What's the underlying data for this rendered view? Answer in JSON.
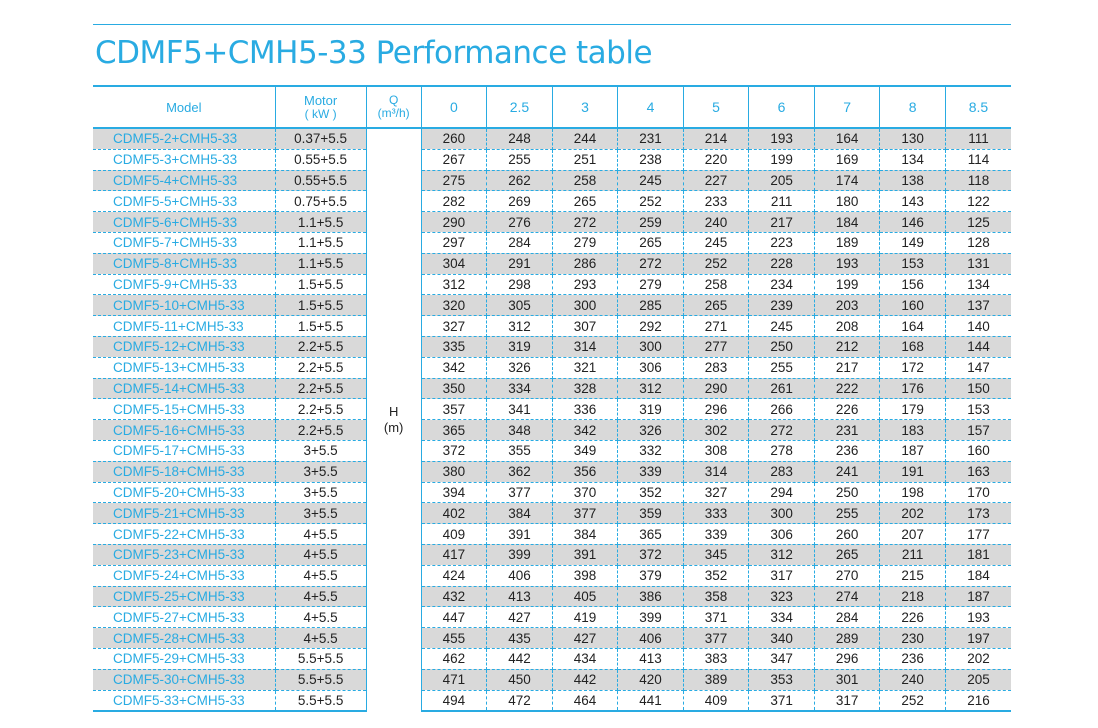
{
  "title": "CDMF5+CMH5-33 Performance table",
  "header": {
    "model": "Model",
    "motor_label": "Motor",
    "motor_unit": "( kW )",
    "q_label": "Q",
    "q_unit": "(m³/h)",
    "flows": [
      "0",
      "2.5",
      "3",
      "4",
      "5",
      "6",
      "7",
      "8",
      "8.5"
    ]
  },
  "h_label": "H",
  "h_unit": "(m)",
  "rows": [
    {
      "model": "CDMF5-2+CMH5-33",
      "motor": "0.37+5.5",
      "h": [
        "260",
        "248",
        "244",
        "231",
        "214",
        "193",
        "164",
        "130",
        "111"
      ]
    },
    {
      "model": "CDMF5-3+CMH5-33",
      "motor": "0.55+5.5",
      "h": [
        "267",
        "255",
        "251",
        "238",
        "220",
        "199",
        "169",
        "134",
        "114"
      ]
    },
    {
      "model": "CDMF5-4+CMH5-33",
      "motor": "0.55+5.5",
      "h": [
        "275",
        "262",
        "258",
        "245",
        "227",
        "205",
        "174",
        "138",
        "118"
      ]
    },
    {
      "model": "CDMF5-5+CMH5-33",
      "motor": "0.75+5.5",
      "h": [
        "282",
        "269",
        "265",
        "252",
        "233",
        "211",
        "180",
        "143",
        "122"
      ]
    },
    {
      "model": "CDMF5-6+CMH5-33",
      "motor": "1.1+5.5",
      "h": [
        "290",
        "276",
        "272",
        "259",
        "240",
        "217",
        "184",
        "146",
        "125"
      ]
    },
    {
      "model": "CDMF5-7+CMH5-33",
      "motor": "1.1+5.5",
      "h": [
        "297",
        "284",
        "279",
        "265",
        "245",
        "223",
        "189",
        "149",
        "128"
      ]
    },
    {
      "model": "CDMF5-8+CMH5-33",
      "motor": "1.1+5.5",
      "h": [
        "304",
        "291",
        "286",
        "272",
        "252",
        "228",
        "193",
        "153",
        "131"
      ]
    },
    {
      "model": "CDMF5-9+CMH5-33",
      "motor": "1.5+5.5",
      "h": [
        "312",
        "298",
        "293",
        "279",
        "258",
        "234",
        "199",
        "156",
        "134"
      ]
    },
    {
      "model": "CDMF5-10+CMH5-33",
      "motor": "1.5+5.5",
      "h": [
        "320",
        "305",
        "300",
        "285",
        "265",
        "239",
        "203",
        "160",
        "137"
      ]
    },
    {
      "model": "CDMF5-11+CMH5-33",
      "motor": "1.5+5.5",
      "h": [
        "327",
        "312",
        "307",
        "292",
        "271",
        "245",
        "208",
        "164",
        "140"
      ]
    },
    {
      "model": "CDMF5-12+CMH5-33",
      "motor": "2.2+5.5",
      "h": [
        "335",
        "319",
        "314",
        "300",
        "277",
        "250",
        "212",
        "168",
        "144"
      ]
    },
    {
      "model": "CDMF5-13+CMH5-33",
      "motor": "2.2+5.5",
      "h": [
        "342",
        "326",
        "321",
        "306",
        "283",
        "255",
        "217",
        "172",
        "147"
      ]
    },
    {
      "model": "CDMF5-14+CMH5-33",
      "motor": "2.2+5.5",
      "h": [
        "350",
        "334",
        "328",
        "312",
        "290",
        "261",
        "222",
        "176",
        "150"
      ]
    },
    {
      "model": "CDMF5-15+CMH5-33",
      "motor": "2.2+5.5",
      "h": [
        "357",
        "341",
        "336",
        "319",
        "296",
        "266",
        "226",
        "179",
        "153"
      ]
    },
    {
      "model": "CDMF5-16+CMH5-33",
      "motor": "2.2+5.5",
      "h": [
        "365",
        "348",
        "342",
        "326",
        "302",
        "272",
        "231",
        "183",
        "157"
      ]
    },
    {
      "model": "CDMF5-17+CMH5-33",
      "motor": "3+5.5",
      "h": [
        "372",
        "355",
        "349",
        "332",
        "308",
        "278",
        "236",
        "187",
        "160"
      ]
    },
    {
      "model": "CDMF5-18+CMH5-33",
      "motor": "3+5.5",
      "h": [
        "380",
        "362",
        "356",
        "339",
        "314",
        "283",
        "241",
        "191",
        "163"
      ]
    },
    {
      "model": "CDMF5-20+CMH5-33",
      "motor": "3+5.5",
      "h": [
        "394",
        "377",
        "370",
        "352",
        "327",
        "294",
        "250",
        "198",
        "170"
      ]
    },
    {
      "model": "CDMF5-21+CMH5-33",
      "motor": "3+5.5",
      "h": [
        "402",
        "384",
        "377",
        "359",
        "333",
        "300",
        "255",
        "202",
        "173"
      ]
    },
    {
      "model": "CDMF5-22+CMH5-33",
      "motor": "4+5.5",
      "h": [
        "409",
        "391",
        "384",
        "365",
        "339",
        "306",
        "260",
        "207",
        "177"
      ]
    },
    {
      "model": "CDMF5-23+CMH5-33",
      "motor": "4+5.5",
      "h": [
        "417",
        "399",
        "391",
        "372",
        "345",
        "312",
        "265",
        "211",
        "181"
      ]
    },
    {
      "model": "CDMF5-24+CMH5-33",
      "motor": "4+5.5",
      "h": [
        "424",
        "406",
        "398",
        "379",
        "352",
        "317",
        "270",
        "215",
        "184"
      ]
    },
    {
      "model": "CDMF5-25+CMH5-33",
      "motor": "4+5.5",
      "h": [
        "432",
        "413",
        "405",
        "386",
        "358",
        "323",
        "274",
        "218",
        "187"
      ]
    },
    {
      "model": "CDMF5-27+CMH5-33",
      "motor": "4+5.5",
      "h": [
        "447",
        "427",
        "419",
        "399",
        "371",
        "334",
        "284",
        "226",
        "193"
      ]
    },
    {
      "model": "CDMF5-28+CMH5-33",
      "motor": "4+5.5",
      "h": [
        "455",
        "435",
        "427",
        "406",
        "377",
        "340",
        "289",
        "230",
        "197"
      ]
    },
    {
      "model": "CDMF5-29+CMH5-33",
      "motor": "5.5+5.5",
      "h": [
        "462",
        "442",
        "434",
        "413",
        "383",
        "347",
        "296",
        "236",
        "202"
      ]
    },
    {
      "model": "CDMF5-30+CMH5-33",
      "motor": "5.5+5.5",
      "h": [
        "471",
        "450",
        "442",
        "420",
        "389",
        "353",
        "301",
        "240",
        "205"
      ]
    },
    {
      "model": "CDMF5-33+CMH5-33",
      "motor": "5.5+5.5",
      "h": [
        "494",
        "472",
        "464",
        "441",
        "409",
        "371",
        "317",
        "252",
        "216"
      ]
    }
  ],
  "colors": {
    "accent": "#29abe2",
    "shade": "#d9d9d9",
    "text": "#222222"
  }
}
